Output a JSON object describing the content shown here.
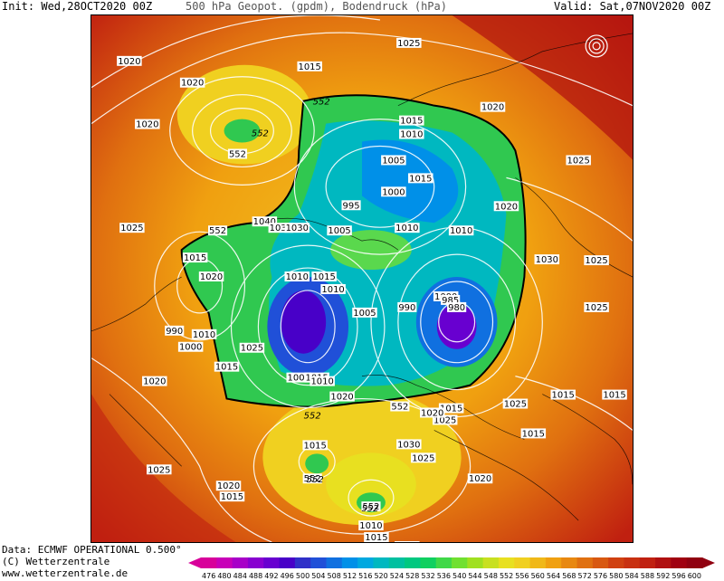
{
  "header": {
    "init": "Init: Wed,28OCT2020 00Z",
    "title": "500 hPa Geopot. (gpdm), Bodendruck (hPa)",
    "valid": "Valid: Sat,07NOV2020 00Z"
  },
  "map": {
    "isobar_labels": [
      "1020",
      "1025",
      "1015",
      "1020",
      "1020",
      "552",
      "1015",
      "1010",
      "1020",
      "1025",
      "1005",
      "1015",
      "1000",
      "995",
      "1020",
      "1025",
      "552",
      "1040",
      "1035",
      "1030",
      "1005",
      "1010",
      "1010",
      "1030",
      "1025",
      "1015",
      "1020",
      "1010",
      "1015",
      "1010",
      "1000",
      "990",
      "985",
      "980",
      "1005",
      "1010",
      "990",
      "1000",
      "1025",
      "1015",
      "1000",
      "1015",
      "1010",
      "1020",
      "1015",
      "552",
      "1025",
      "1020",
      "1015",
      "1030",
      "1025",
      "552",
      "1020",
      "1020",
      "1015",
      "1010",
      "1015",
      "1020",
      "552",
      "1015",
      "1015",
      "1025",
      "1025",
      "1015",
      "1020",
      "1025"
    ],
    "geopotential_labels": [
      "552",
      "552",
      "552",
      "552",
      "552"
    ]
  },
  "footer": {
    "source": "Data: ECMWF OPERATIONAL 0.500°",
    "copyright": "(C) Wetterzentrale",
    "url": "www.wetterzentrale.de"
  },
  "colorbar": {
    "ticks": [
      "476",
      "480",
      "484",
      "488",
      "492",
      "496",
      "500",
      "504",
      "508",
      "512",
      "516",
      "520",
      "524",
      "528",
      "532",
      "536",
      "540",
      "544",
      "548",
      "552",
      "556",
      "560",
      "564",
      "568",
      "572",
      "576",
      "580",
      "584",
      "588",
      "592",
      "596",
      "600"
    ],
    "colors": [
      "#d8009a",
      "#c800b8",
      "#a800c8",
      "#8800d0",
      "#6800d0",
      "#4800c8",
      "#3030c8",
      "#2050d8",
      "#1070e0",
      "#0090e8",
      "#00a8e0",
      "#00b8c0",
      "#00c0a0",
      "#00c880",
      "#10d060",
      "#40d848",
      "#70e030",
      "#a0e020",
      "#c8e020",
      "#e8e020",
      "#f0d020",
      "#f0b818",
      "#f0a010",
      "#e88810",
      "#e07010",
      "#d85810",
      "#d04010",
      "#c83010",
      "#c02010",
      "#b01010",
      "#a00010",
      "#900010"
    ]
  }
}
